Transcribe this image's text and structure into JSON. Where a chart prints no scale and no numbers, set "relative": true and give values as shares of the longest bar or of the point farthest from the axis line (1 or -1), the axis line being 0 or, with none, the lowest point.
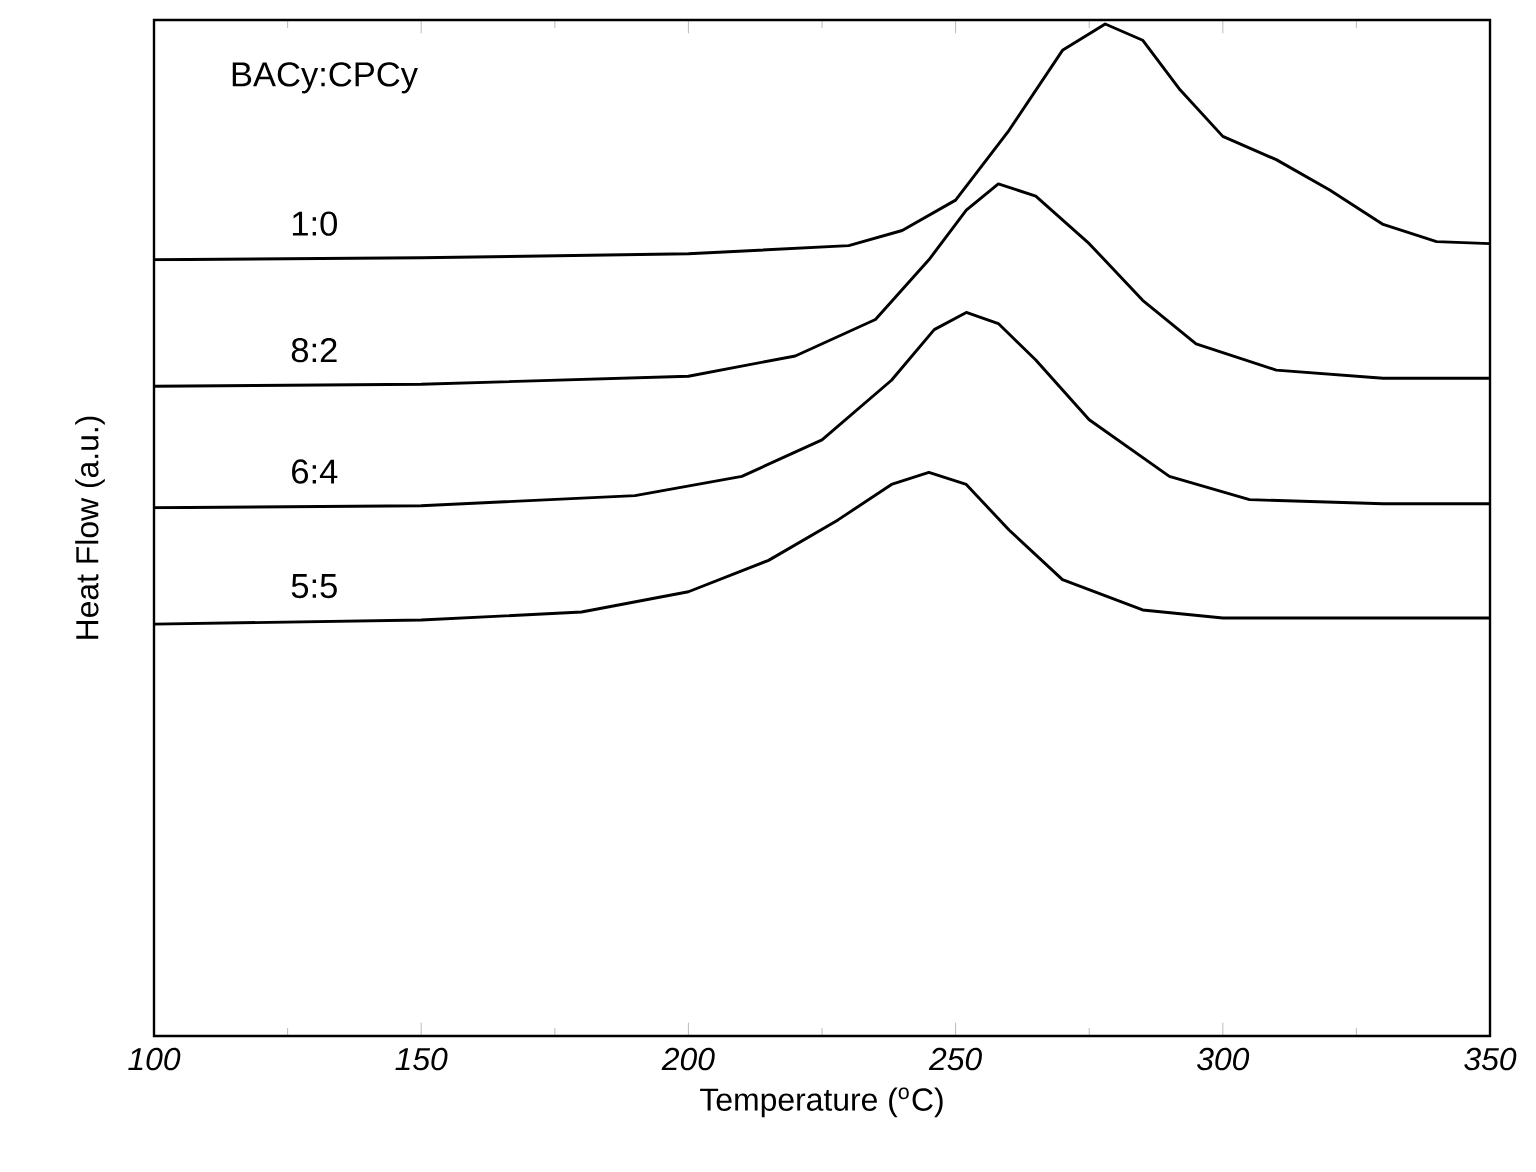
{
  "chart_data": {
    "type": "line",
    "xlabel": "Temperature ($^{o}$C)",
    "ylabel": "Heat Flow (a.u.)",
    "legend_title": "BACy:CPCy",
    "relative": true,
    "xlim": [
      100,
      350
    ],
    "xticks": [
      100,
      150,
      200,
      250,
      300,
      350
    ],
    "marker": "none",
    "line_style": "solid",
    "series": [
      {
        "name": "1:0",
        "color": "#000000",
        "x": [
          100,
          150,
          200,
          230,
          240,
          250,
          260,
          270,
          278,
          285,
          292,
          300,
          310,
          320,
          330,
          340,
          350
        ],
        "values": [
          0.767,
          0.769,
          0.773,
          0.781,
          0.796,
          0.826,
          0.895,
          0.974,
          1.0,
          0.984,
          0.935,
          0.889,
          0.866,
          0.836,
          0.802,
          0.785,
          0.783
        ]
      },
      {
        "name": "8:2",
        "color": "#000000",
        "x": [
          100,
          150,
          200,
          220,
          235,
          245,
          252,
          258,
          265,
          275,
          285,
          295,
          310,
          330,
          350
        ],
        "values": [
          0.642,
          0.644,
          0.652,
          0.672,
          0.708,
          0.767,
          0.816,
          0.842,
          0.83,
          0.783,
          0.727,
          0.684,
          0.658,
          0.65,
          0.65
        ]
      },
      {
        "name": "6:4",
        "color": "#000000",
        "x": [
          100,
          150,
          190,
          210,
          225,
          238,
          246,
          252,
          258,
          265,
          275,
          290,
          305,
          330,
          350
        ],
        "values": [
          0.522,
          0.524,
          0.534,
          0.553,
          0.589,
          0.648,
          0.698,
          0.715,
          0.704,
          0.668,
          0.609,
          0.553,
          0.53,
          0.526,
          0.526
        ]
      },
      {
        "name": "5:5",
        "color": "#000000",
        "x": [
          100,
          150,
          180,
          200,
          215,
          228,
          238,
          245,
          252,
          260,
          270,
          285,
          300,
          350
        ],
        "values": [
          0.407,
          0.411,
          0.419,
          0.439,
          0.47,
          0.51,
          0.545,
          0.557,
          0.545,
          0.5,
          0.451,
          0.421,
          0.413,
          0.413
        ]
      }
    ]
  }
}
